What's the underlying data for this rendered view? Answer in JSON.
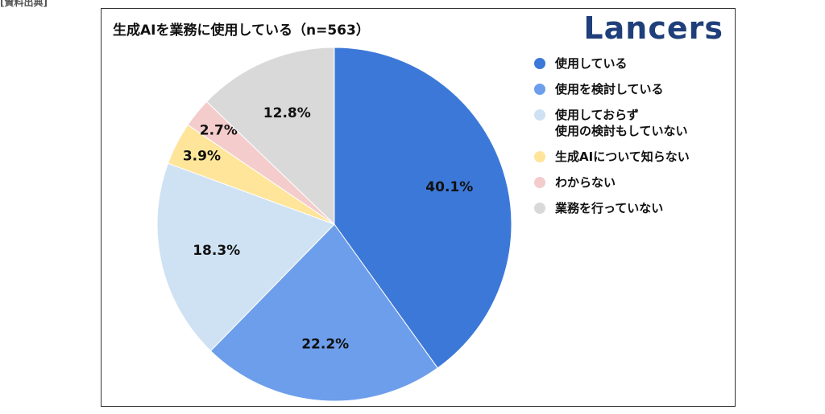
{
  "page": {
    "corner_text": "[資料出典]",
    "brand": "Lancers"
  },
  "chart_data": {
    "type": "pie",
    "title": "生成AIを業務に使用している（n=563）",
    "legend_position": "right",
    "slices": [
      {
        "name": "使用している",
        "value": 40.1,
        "label": "40.1%",
        "color": "#3c78d8"
      },
      {
        "name": "使用を検討している",
        "value": 22.2,
        "label": "22.2%",
        "color": "#6d9eeb"
      },
      {
        "name": "使用しておらず\n使用の検討もしていない",
        "value": 18.3,
        "label": "18.3%",
        "color": "#cfe2f3"
      },
      {
        "name": "生成AIについて知らない",
        "value": 3.9,
        "label": "3.9%",
        "color": "#ffe599"
      },
      {
        "name": "わからない",
        "value": 2.7,
        "label": "2.7%",
        "color": "#f4cccc"
      },
      {
        "name": "業務を行っていない",
        "value": 12.8,
        "label": "12.8%",
        "color": "#d9d9d9"
      }
    ]
  }
}
